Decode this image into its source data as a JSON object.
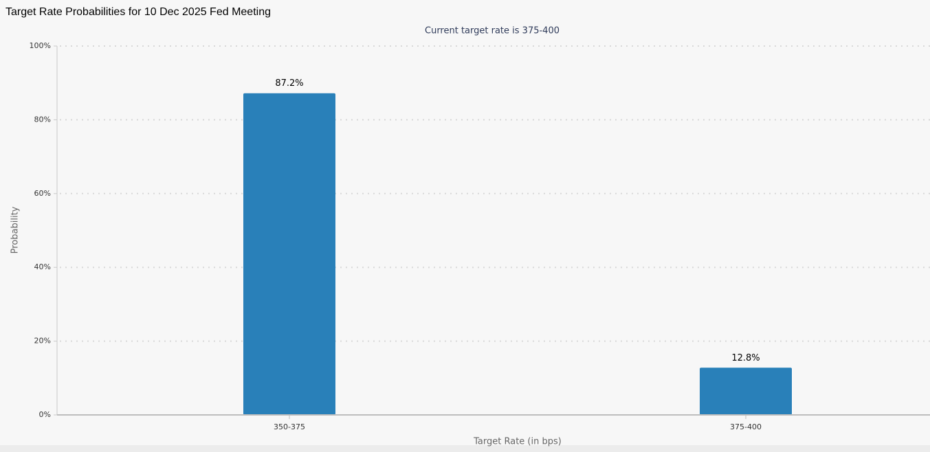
{
  "chart_data": {
    "type": "bar",
    "title": "Target Rate Probabilities for 10 Dec 2025 Fed Meeting",
    "subtitle": "Current target rate is 375-400",
    "x_label": "Target Rate (in bps)",
    "y_label": "Probability",
    "categories": [
      "350-375",
      "375-400"
    ],
    "values": [
      87.2,
      12.8
    ],
    "value_labels": [
      "87.2%",
      "12.8%"
    ],
    "color": "#2980b9",
    "ylim": [
      0,
      100
    ],
    "yticks": [
      {
        "value": 0,
        "label": "0%"
      },
      {
        "value": 20,
        "label": "20%"
      },
      {
        "value": 40,
        "label": "40%"
      },
      {
        "value": 60,
        "label": "60%"
      },
      {
        "value": 80,
        "label": "80%"
      },
      {
        "value": 100,
        "label": "100%"
      }
    ],
    "grid": true
  }
}
